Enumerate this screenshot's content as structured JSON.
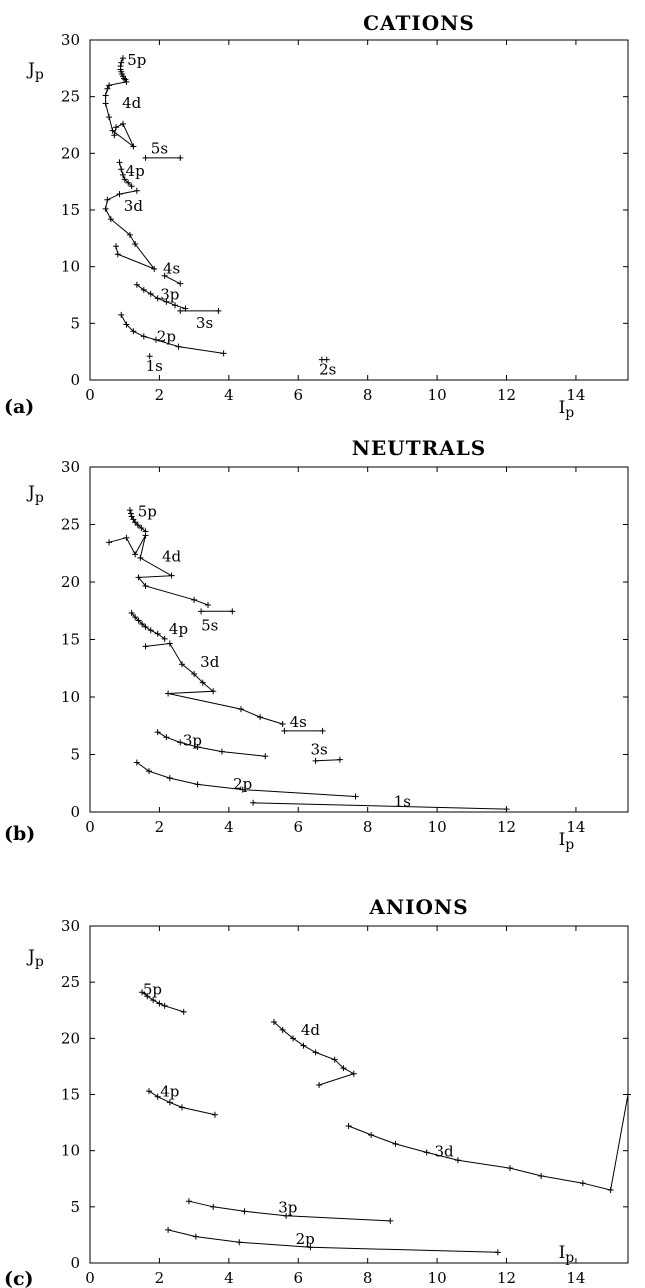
{
  "chart_data": [
    {
      "type": "line",
      "panel_label": "(a)",
      "title": "CATIONS",
      "xlabel": "Ip",
      "ylabel": "Jp",
      "xlim": [
        0,
        15.5
      ],
      "ylim": [
        0,
        30
      ],
      "x_ticks": [
        "0",
        "2",
        "4",
        "6",
        "8",
        "10",
        "12",
        "14"
      ],
      "y_ticks": [
        "0",
        "5",
        "10",
        "15",
        "20",
        "25",
        "30"
      ],
      "series": [
        {
          "label": "1s",
          "x": [
            1.72
          ],
          "y": [
            2.1
          ],
          "label_at": [
            1.85,
            0.8
          ]
        },
        {
          "label": "2s",
          "x": [
            6.68,
            6.82
          ],
          "y": [
            1.8,
            1.8
          ],
          "label_at": [
            6.85,
            0.5
          ]
        },
        {
          "label": "2p",
          "x": [
            0.9,
            1.05,
            1.25,
            1.55,
            1.9,
            2.55,
            3.85
          ],
          "y": [
            5.75,
            4.9,
            4.3,
            3.85,
            3.55,
            2.95,
            2.35
          ],
          "label_at": [
            2.2,
            3.4
          ]
        },
        {
          "label": "3s",
          "x": [
            2.6,
            3.7
          ],
          "y": [
            6.1,
            6.1
          ],
          "label_at": [
            3.3,
            4.6
          ]
        },
        {
          "label": "3p",
          "x": [
            1.35,
            1.55,
            1.75,
            1.95,
            2.2,
            2.45,
            2.75
          ],
          "y": [
            8.4,
            7.95,
            7.6,
            7.2,
            6.9,
            6.6,
            6.3
          ],
          "label_at": [
            2.3,
            7.1
          ]
        },
        {
          "label": "4s",
          "x": [
            2.15,
            2.6
          ],
          "y": [
            9.2,
            8.5
          ],
          "label_at": [
            2.35,
            9.4
          ]
        },
        {
          "label": "3d",
          "x": [
            0.75,
            0.8,
            1.85,
            1.3,
            1.15,
            0.6,
            0.45,
            0.5,
            0.85,
            1.35
          ],
          "y": [
            11.8,
            11.1,
            9.8,
            12.0,
            12.8,
            14.2,
            15.1,
            15.9,
            16.4,
            16.7
          ],
          "label_at": [
            1.25,
            14.9
          ]
        },
        {
          "label": "4p",
          "x": [
            0.85,
            0.9,
            0.95,
            1.0,
            1.1,
            1.2
          ],
          "y": [
            19.2,
            18.6,
            18.1,
            17.7,
            17.4,
            17.1
          ],
          "label_at": [
            1.3,
            18.0
          ]
        },
        {
          "label": "5s",
          "x": [
            1.6,
            2.6
          ],
          "y": [
            19.6,
            19.6
          ],
          "label_at": [
            2.0,
            20.0
          ]
        },
        {
          "label": "4d",
          "x": [
            0.7,
            0.75,
            0.95,
            1.25,
            0.65,
            0.55,
            0.45,
            0.45,
            0.5,
            0.55,
            1.05
          ],
          "y": [
            21.6,
            22.3,
            22.6,
            20.6,
            22.0,
            23.2,
            24.4,
            25.1,
            25.7,
            26.0,
            26.3
          ],
          "label_at": [
            1.2,
            24.0
          ]
        },
        {
          "label": "5p",
          "x": [
            0.95,
            0.9,
            0.88,
            0.88,
            0.9,
            0.92,
            0.95,
            0.98,
            1.02
          ],
          "y": [
            28.4,
            28.0,
            27.7,
            27.4,
            27.2,
            27.0,
            26.8,
            26.6,
            26.5
          ],
          "label_at": [
            1.35,
            27.8
          ]
        }
      ]
    },
    {
      "type": "line",
      "panel_label": "(b)",
      "title": "NEUTRALS",
      "xlabel": "Ip",
      "ylabel": "Jp",
      "xlim": [
        0,
        15.5
      ],
      "ylim": [
        0,
        30
      ],
      "x_ticks": [
        "0",
        "2",
        "4",
        "6",
        "8",
        "10",
        "12",
        "14"
      ],
      "y_ticks": [
        "0",
        "5",
        "10",
        "15",
        "20",
        "25",
        "30"
      ],
      "series": [
        {
          "label": "1s",
          "x": [
            4.7,
            12.0
          ],
          "y": [
            0.8,
            0.25
          ],
          "label_at": [
            9.0,
            0.5
          ]
        },
        {
          "label": "2p",
          "x": [
            1.35,
            1.7,
            2.3,
            3.1,
            4.4,
            7.65
          ],
          "y": [
            4.3,
            3.55,
            2.95,
            2.4,
            1.95,
            1.35
          ],
          "label_at": [
            4.4,
            2.0
          ]
        },
        {
          "label": "3s",
          "x": [
            6.5,
            7.2
          ],
          "y": [
            4.45,
            4.55
          ],
          "label_at": [
            6.6,
            5.0
          ]
        },
        {
          "label": "3p",
          "x": [
            1.95,
            2.2,
            2.6,
            3.1,
            3.8,
            5.05
          ],
          "y": [
            6.95,
            6.5,
            6.05,
            5.65,
            5.25,
            4.85
          ],
          "label_at": [
            2.95,
            5.8
          ]
        },
        {
          "label": "4s",
          "x": [
            5.6,
            6.7
          ],
          "y": [
            7.05,
            7.05
          ],
          "label_at": [
            6.0,
            7.4
          ]
        },
        {
          "label": "3d",
          "x": [
            1.6,
            2.3,
            2.65,
            3.0,
            3.25,
            3.55,
            2.25,
            4.35,
            4.9,
            5.55
          ],
          "y": [
            14.4,
            14.65,
            12.85,
            12.0,
            11.25,
            10.5,
            10.3,
            8.95,
            8.25,
            7.65
          ],
          "label_at": [
            3.45,
            12.6
          ]
        },
        {
          "label": "4p",
          "x": [
            1.2,
            1.3,
            1.4,
            1.5,
            1.6,
            1.75,
            1.95,
            2.15
          ],
          "y": [
            17.3,
            16.95,
            16.65,
            16.35,
            16.1,
            15.8,
            15.5,
            15.05
          ],
          "label_at": [
            2.55,
            15.5
          ]
        },
        {
          "label": "5s",
          "x": [
            3.2,
            4.1
          ],
          "y": [
            17.45,
            17.45
          ],
          "label_at": [
            3.45,
            15.8
          ]
        },
        {
          "label": "4d",
          "x": [
            0.55,
            1.05,
            1.3,
            1.6,
            1.45,
            2.35,
            1.4,
            1.6,
            3.0,
            3.4
          ],
          "y": [
            23.45,
            23.85,
            22.4,
            24.05,
            22.1,
            20.55,
            20.4,
            19.65,
            18.45,
            18.0
          ],
          "label_at": [
            2.35,
            21.8
          ]
        },
        {
          "label": "5p",
          "x": [
            1.15,
            1.18,
            1.2,
            1.25,
            1.3,
            1.38,
            1.48,
            1.6
          ],
          "y": [
            26.25,
            25.95,
            25.7,
            25.45,
            25.2,
            24.95,
            24.7,
            24.4
          ],
          "label_at": [
            1.65,
            25.7
          ]
        }
      ]
    },
    {
      "type": "line",
      "panel_label": "(c)",
      "title": "ANIONS",
      "xlabel": "Ip",
      "ylabel": "Jp",
      "xlim": [
        0,
        15.5
      ],
      "ylim": [
        0,
        30
      ],
      "x_ticks": [
        "0",
        "2",
        "4",
        "6",
        "8",
        "10",
        "12",
        "14"
      ],
      "y_ticks": [
        "0",
        "5",
        "10",
        "15",
        "20",
        "25",
        "30"
      ],
      "series": [
        {
          "label": "2p",
          "x": [
            2.25,
            3.05,
            4.3,
            6.35,
            11.75
          ],
          "y": [
            2.95,
            2.35,
            1.85,
            1.4,
            0.95
          ],
          "label_at": [
            6.2,
            1.7
          ]
        },
        {
          "label": "3p",
          "x": [
            2.85,
            3.55,
            4.45,
            5.65,
            8.65
          ],
          "y": [
            5.5,
            5.0,
            4.6,
            4.2,
            3.75
          ],
          "label_at": [
            5.7,
            4.5
          ]
        },
        {
          "label": "3d",
          "x": [
            7.45,
            8.1,
            8.8,
            9.7,
            10.6,
            12.1,
            13.0,
            14.2,
            15.0,
            15.5
          ],
          "y": [
            12.2,
            11.4,
            10.6,
            9.85,
            9.15,
            8.45,
            7.75,
            7.1,
            6.5,
            15.0
          ],
          "label_at": [
            10.2,
            9.5
          ]
        },
        {
          "label": "4p",
          "x": [
            1.7,
            1.95,
            2.3,
            2.65,
            3.6
          ],
          "y": [
            15.3,
            14.8,
            14.3,
            13.85,
            13.2
          ],
          "label_at": [
            2.3,
            14.8
          ]
        },
        {
          "label": "4d",
          "x": [
            5.3,
            5.55,
            5.85,
            6.15,
            6.5,
            7.05,
            7.3,
            7.6,
            6.6
          ],
          "y": [
            21.45,
            20.75,
            20.0,
            19.35,
            18.75,
            18.1,
            17.35,
            16.85,
            15.85
          ],
          "label_at": [
            6.35,
            20.3
          ]
        },
        {
          "label": "5p",
          "x": [
            1.5,
            1.65,
            1.82,
            2.0,
            2.15,
            2.7
          ],
          "y": [
            24.1,
            23.75,
            23.4,
            23.1,
            22.9,
            22.35
          ],
          "label_at": [
            1.8,
            23.9
          ]
        }
      ]
    }
  ]
}
